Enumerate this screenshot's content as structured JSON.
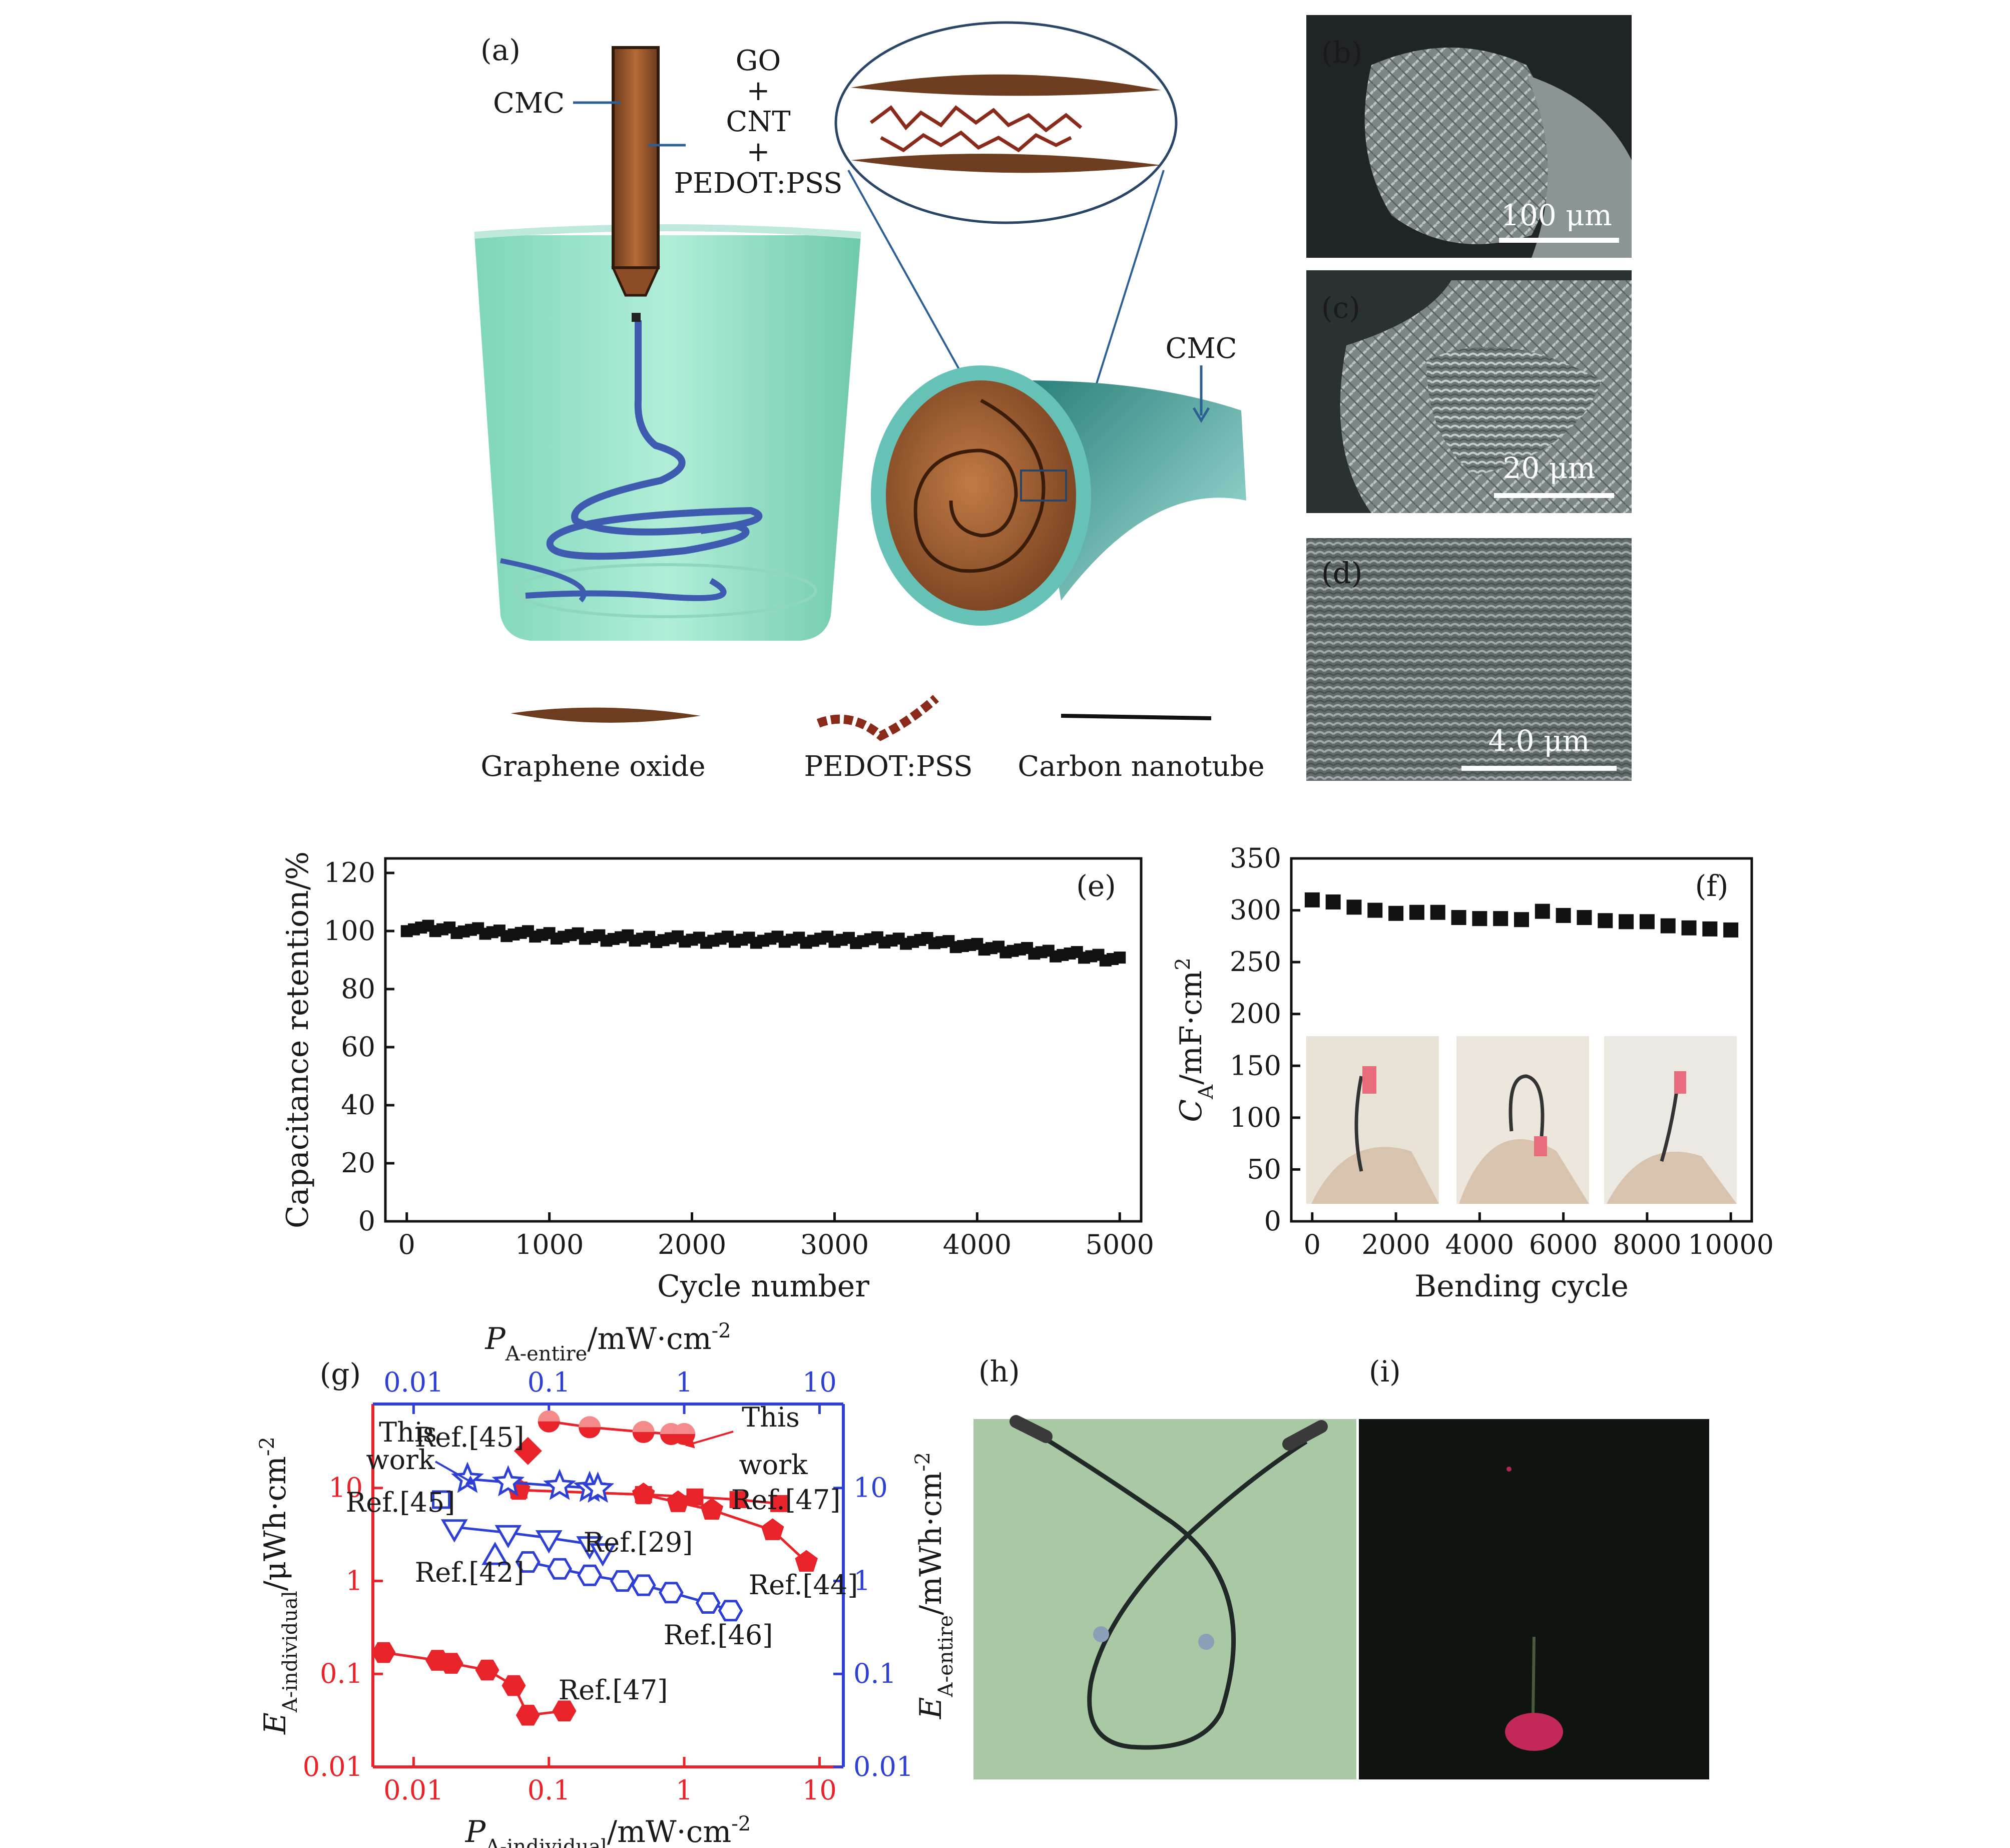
{
  "panel_a": {
    "label": "(a)",
    "cmc_left": "CMC",
    "inputs": [
      "GO",
      "+",
      "CNT",
      "+",
      "PEDOT:PSS"
    ],
    "cmc_right": "CMC",
    "legend": [
      "Graphene oxide",
      "PEDOT:PSS",
      "Carbon nanotube"
    ]
  },
  "sem": [
    {
      "label": "(b)",
      "scale": "100 μm"
    },
    {
      "label": "(c)",
      "scale": "20 μm"
    },
    {
      "label": "(d)",
      "scale": "4.0 μm"
    }
  ],
  "photos": {
    "h": "(h)",
    "i": "(i)"
  },
  "colors": {
    "red": "#e8232a",
    "blue": "#2d3fd4",
    "black": "#111111"
  },
  "chart_data": [
    {
      "panel": "(e)",
      "type": "scatter",
      "xlabel": "Cycle number",
      "ylabel": "Capacitance retention/%",
      "xlim": [
        -150,
        5150
      ],
      "ylim": [
        0,
        125
      ],
      "xticks": [
        0,
        1000,
        2000,
        3000,
        4000,
        5000
      ],
      "yticks": [
        0,
        20,
        40,
        60,
        80,
        100,
        120
      ],
      "trend": {
        "x": [
          0,
          300,
          800,
          1500,
          2000,
          3000,
          3700,
          4000,
          4500,
          5000
        ],
        "y": [
          101,
          100.5,
          99,
          97.5,
          97,
          97,
          96.5,
          94.5,
          92.5,
          90.5
        ]
      },
      "n_points": 100
    },
    {
      "panel": "(f)",
      "type": "scatter",
      "xlabel": "Bending cycle",
      "ylabel": "C_A/mF·cm^2",
      "xlim": [
        -500,
        10500
      ],
      "ylim": [
        0,
        350
      ],
      "xticks": [
        0,
        2000,
        4000,
        6000,
        8000,
        10000
      ],
      "yticks": [
        0,
        50,
        100,
        150,
        200,
        250,
        300,
        350
      ],
      "x": [
        0,
        500,
        1000,
        1500,
        2000,
        2500,
        3000,
        3500,
        4000,
        4500,
        5000,
        5500,
        6000,
        6500,
        7000,
        7500,
        8000,
        8500,
        9000,
        9500,
        10000
      ],
      "y": [
        310,
        308,
        303,
        300,
        297,
        298,
        298,
        293,
        292,
        292,
        291,
        299,
        295,
        293,
        290,
        289,
        289,
        285,
        283,
        282,
        281
      ]
    },
    {
      "panel": "(g)",
      "type": "scatter",
      "scale": "log-log",
      "xlabel_bottom": "P_A-individual/mW·cm^-2",
      "xlabel_top": "P_A-entire/mW·cm^-2",
      "ylabel_left": "E_A-individual/μWh·cm^-2",
      "ylabel_right": "E_A-entire/mWh·cm^-2",
      "xlim": [
        0.005,
        15
      ],
      "ylim": [
        0.01,
        80
      ],
      "ticks": [
        0.01,
        0.1,
        1,
        10
      ],
      "ticklabels": [
        "0.01",
        "0.1",
        "1",
        "10"
      ],
      "series": [
        {
          "axis": "red",
          "marker": "circle-half",
          "x": [
            0.1,
            0.2,
            0.5,
            0.8,
            1.0
          ],
          "y": [
            52,
            45,
            40,
            38,
            38
          ]
        },
        {
          "axis": "red",
          "marker": "diamond",
          "x": [
            0.07
          ],
          "y": [
            25
          ]
        },
        {
          "axis": "red",
          "marker": "square",
          "x": [
            0.06,
            0.5,
            1.2,
            2.5,
            5.0
          ],
          "y": [
            9.5,
            8.5,
            8.0,
            7.5,
            6.8
          ]
        },
        {
          "axis": "red",
          "marker": "pentagon",
          "x": [
            0.06,
            0.5,
            0.9,
            1.6,
            4.5,
            8.0
          ],
          "y": [
            9.5,
            8.5,
            7.0,
            5.8,
            3.5,
            1.6
          ]
        },
        {
          "axis": "red",
          "marker": "hexagon",
          "x": [
            0.006,
            0.015,
            0.019,
            0.035,
            0.055,
            0.07,
            0.13
          ],
          "y": [
            0.17,
            0.14,
            0.13,
            0.11,
            0.075,
            0.036,
            0.04
          ]
        },
        {
          "axis": "blue",
          "marker": "star",
          "x": [
            0.025,
            0.05,
            0.12,
            0.2,
            0.23
          ],
          "y": [
            12.5,
            11.5,
            10.5,
            10.0,
            9.8
          ]
        },
        {
          "axis": "blue",
          "marker": "square-open",
          "x": [
            0.016
          ],
          "y": [
            7.5
          ]
        },
        {
          "axis": "blue",
          "marker": "triangle-down",
          "x": [
            0.02,
            0.05,
            0.1,
            0.2,
            0.25
          ],
          "y": [
            3.8,
            3.3,
            2.9,
            2.5,
            2.1
          ]
        },
        {
          "axis": "blue",
          "marker": "triangle-up",
          "x": [
            0.04
          ],
          "y": [
            1.8
          ]
        },
        {
          "axis": "blue",
          "marker": "hexagon-open",
          "x": [
            0.07,
            0.12,
            0.2,
            0.35,
            0.5,
            0.8,
            1.5,
            2.2
          ],
          "y": [
            1.6,
            1.35,
            1.15,
            1.0,
            0.9,
            0.75,
            0.58,
            0.48
          ]
        }
      ],
      "annotations": [
        {
          "text": "Ref.[45]",
          "color": "red"
        },
        {
          "text": "This",
          "color": "red"
        },
        {
          "text": "work",
          "color": "red"
        },
        {
          "text": "Ref.[47]",
          "color": "red"
        },
        {
          "text": "Ref.[44]",
          "color": "red"
        },
        {
          "text": "Ref.[47]",
          "color": "red"
        },
        {
          "text": "This",
          "color": "blue"
        },
        {
          "text": "work",
          "color": "blue"
        },
        {
          "text": "Ref.[45]",
          "color": "blue"
        },
        {
          "text": "Ref.[29]",
          "color": "blue"
        },
        {
          "text": "Ref.[42]",
          "color": "blue"
        },
        {
          "text": "Ref.[46]",
          "color": "blue"
        }
      ]
    }
  ]
}
